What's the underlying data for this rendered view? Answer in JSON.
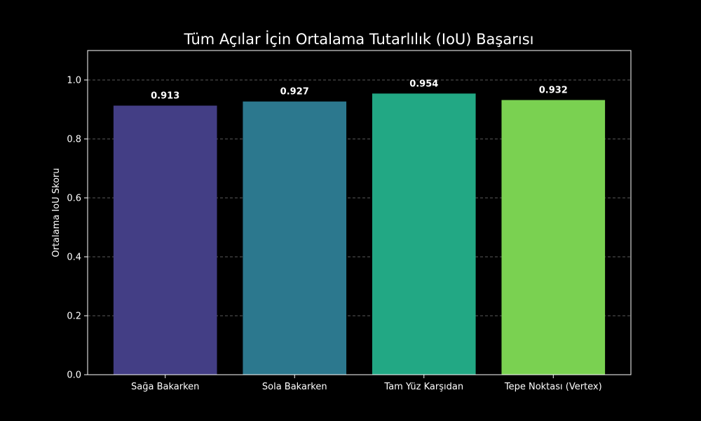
{
  "chart_data": {
    "type": "bar",
    "title": "Tüm Açılar İçin Ortalama Tutarlılık (IoU) Başarısı",
    "xlabel": "",
    "ylabel": "Ortalama IoU Skoru",
    "categories": [
      "Sağa Bakarken",
      "Sola Bakarken",
      "Tam Yüz Karşıdan",
      "Tepe Noktası (Vertex)"
    ],
    "values": [
      0.913,
      0.927,
      0.954,
      0.932
    ],
    "value_labels": [
      "0.913",
      "0.927",
      "0.954",
      "0.932"
    ],
    "bar_colors": [
      "#433e85",
      "#2c788e",
      "#22a884",
      "#7ad151"
    ],
    "ylim": [
      0,
      1.1
    ],
    "yticks": [
      0.0,
      0.2,
      0.4,
      0.6,
      0.8,
      1.0
    ],
    "ytick_labels": [
      "0.0",
      "0.2",
      "0.4",
      "0.6",
      "0.8",
      "1.0"
    ],
    "grid": "y-dashed",
    "background_color": "#000000",
    "text_color": "#ffffff"
  }
}
